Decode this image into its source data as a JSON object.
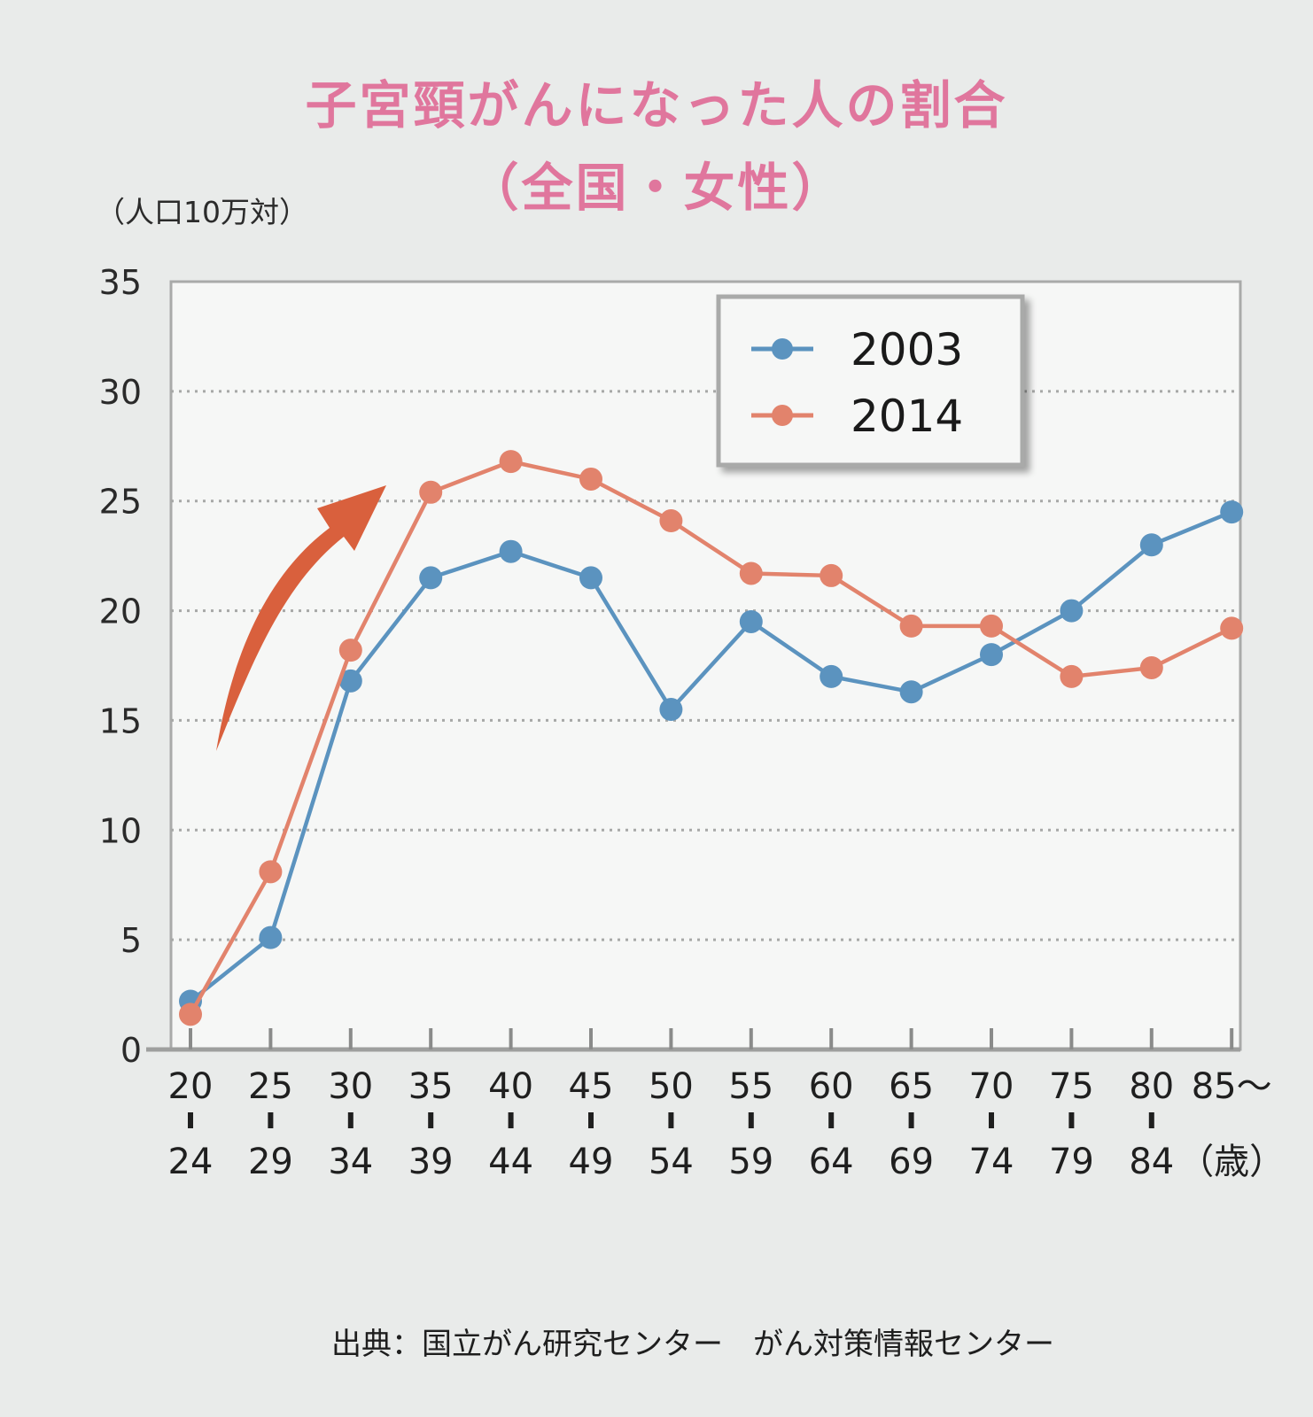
{
  "title": {
    "line1": "子宮頸がんになった人の割合",
    "line2": "（全国・女性）"
  },
  "unit_label": "（人口10万対）",
  "source": "出典：国立がん研究センター　がん対策情報センター",
  "colors": {
    "series_2003": "#5b93bf",
    "series_2014": "#e2836c",
    "arrow": "#d9603d",
    "title": "#e0769d"
  },
  "chart_data": {
    "type": "line",
    "title": "子宮頸がんになった人の割合（全国・女性）",
    "ylabel": "（人口10万対）",
    "xlabel": "（歳）",
    "ylim": [
      0,
      35
    ],
    "yticks": [
      0,
      5,
      10,
      15,
      20,
      25,
      30,
      35
    ],
    "grid": "horizontal dotted",
    "legend_position": "top-right",
    "categories": [
      {
        "top": "20",
        "bottom": "24"
      },
      {
        "top": "25",
        "bottom": "29"
      },
      {
        "top": "30",
        "bottom": "34"
      },
      {
        "top": "35",
        "bottom": "39"
      },
      {
        "top": "40",
        "bottom": "44"
      },
      {
        "top": "45",
        "bottom": "49"
      },
      {
        "top": "50",
        "bottom": "54"
      },
      {
        "top": "55",
        "bottom": "59"
      },
      {
        "top": "60",
        "bottom": "64"
      },
      {
        "top": "65",
        "bottom": "69"
      },
      {
        "top": "70",
        "bottom": "74"
      },
      {
        "top": "75",
        "bottom": "79"
      },
      {
        "top": "80",
        "bottom": "84"
      },
      {
        "top": "85～",
        "bottom": "（歳）"
      }
    ],
    "series": [
      {
        "name": "2003",
        "color": "#5b93bf",
        "values": [
          2.2,
          5.1,
          16.8,
          21.5,
          22.7,
          21.5,
          15.5,
          19.5,
          17.0,
          16.3,
          18.0,
          20.0,
          23.0,
          24.5
        ]
      },
      {
        "name": "2014",
        "color": "#e2836c",
        "values": [
          1.6,
          8.1,
          18.2,
          25.4,
          26.8,
          26.0,
          24.1,
          21.7,
          21.6,
          19.3,
          19.3,
          17.0,
          17.4,
          19.2
        ]
      }
    ],
    "annotations": [
      "upward arrow"
    ]
  }
}
